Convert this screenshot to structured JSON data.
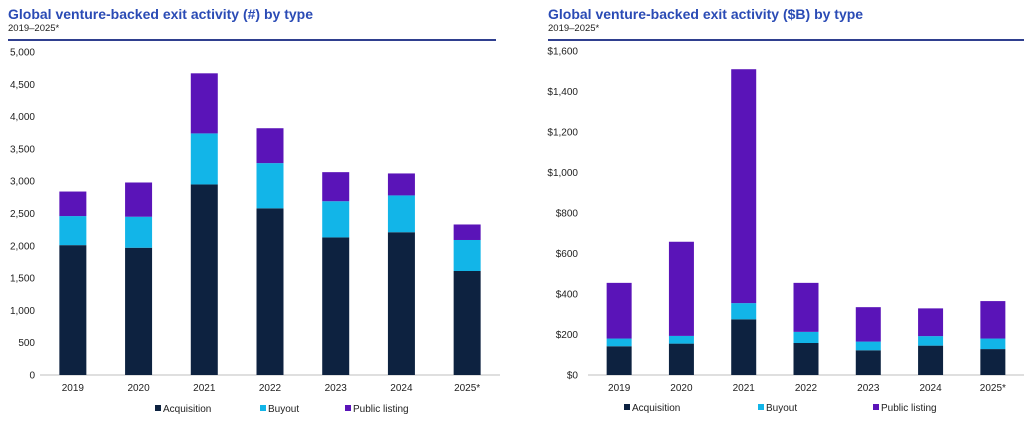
{
  "colors": {
    "acquisition": "#0d2240",
    "buyout": "#12b5e8",
    "public_listing": "#5a14b8",
    "title": "#2a4bb5"
  },
  "chart_data": [
    {
      "type": "bar",
      "stacked": true,
      "title": "Global venture-backed exit activity (#) by type",
      "subtitle": "2019–2025*",
      "categories": [
        "2019",
        "2020",
        "2021",
        "2022",
        "2023",
        "2024",
        "2025*"
      ],
      "series": [
        {
          "name": "Acquisition",
          "values": [
            2010,
            1970,
            2950,
            2580,
            2130,
            2210,
            1610
          ]
        },
        {
          "name": "Buyout",
          "values": [
            450,
            480,
            790,
            700,
            560,
            570,
            480
          ]
        },
        {
          "name": "Public listing",
          "values": [
            380,
            530,
            930,
            540,
            450,
            340,
            240
          ]
        }
      ],
      "ylim": [
        0,
        5000
      ],
      "yticks": [
        "0",
        "500",
        "1,000",
        "1,500",
        "2,000",
        "2,500",
        "3,000",
        "3,500",
        "4,000",
        "4,500",
        "5,000"
      ],
      "legend": "bottom"
    },
    {
      "type": "bar",
      "stacked": true,
      "title": "Global venture-backed exit activity ($B) by type",
      "subtitle": "2019–2025*",
      "categories": [
        "2019",
        "2020",
        "2021",
        "2022",
        "2023",
        "2024",
        "2025*"
      ],
      "series": [
        {
          "name": "Acquisition",
          "values": [
            142,
            155,
            275,
            158,
            122,
            145,
            128
          ]
        },
        {
          "name": "Buyout",
          "values": [
            38,
            38,
            80,
            55,
            43,
            47,
            52
          ]
        },
        {
          "name": "Public listing",
          "values": [
            275,
            465,
            1155,
            242,
            170,
            137,
            185
          ]
        }
      ],
      "ylim": [
        0,
        1600
      ],
      "yticks": [
        "$0",
        "$200",
        "$400",
        "$600",
        "$800",
        "$1,000",
        "$1,200",
        "$1,400",
        "$1,600"
      ],
      "legend": "bottom"
    }
  ]
}
